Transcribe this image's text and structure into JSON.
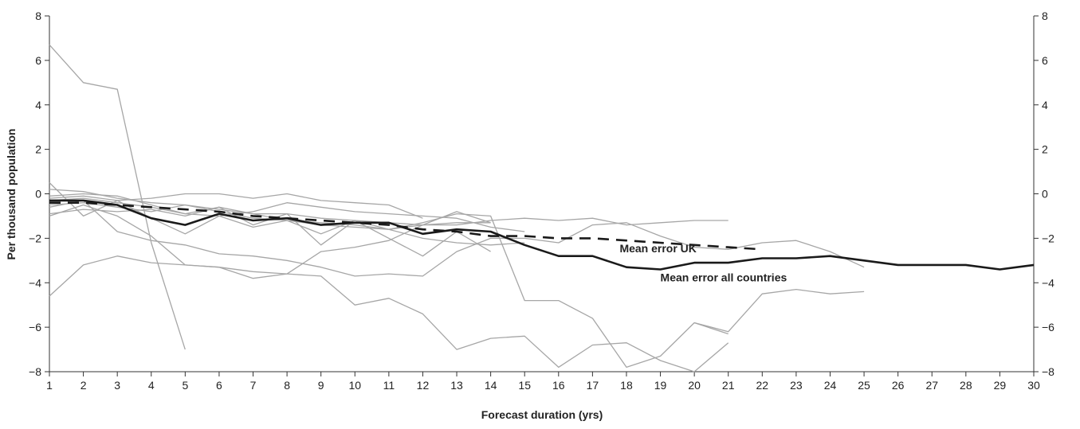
{
  "chart_data": {
    "type": "line",
    "xlabel": "Forecast duration (yrs)",
    "ylabel": "Per thousand population",
    "xlim": [
      1,
      30
    ],
    "ylim": [
      -8,
      8
    ],
    "x_ticks": [
      1,
      2,
      3,
      4,
      5,
      6,
      7,
      8,
      9,
      10,
      11,
      12,
      13,
      14,
      15,
      16,
      17,
      18,
      19,
      20,
      21,
      22,
      23,
      24,
      25,
      26,
      27,
      28,
      29,
      30
    ],
    "y_ticks": [
      -8,
      -6,
      -4,
      -2,
      0,
      2,
      4,
      6,
      8
    ],
    "right_axis": true,
    "grid": false,
    "colors": {
      "country_lines": "#a6a6a6",
      "mean_all": "#1a1a1a",
      "mean_uk": "#1a1a1a",
      "axis": "#333333"
    },
    "annotations": [
      {
        "text": "Mean error UK",
        "x": 17.8,
        "y": -2.45
      },
      {
        "text": "Mean error all countries",
        "x": 19.0,
        "y": -3.75
      }
    ],
    "series": [
      {
        "name": "Mean error all countries",
        "style": "mean_all",
        "x": [
          1,
          2,
          3,
          4,
          5,
          6,
          7,
          8,
          9,
          10,
          11,
          12,
          13,
          14,
          15,
          16,
          17,
          18,
          19,
          20,
          21,
          22,
          23,
          24,
          25,
          26,
          27,
          28,
          29,
          30
        ],
        "y": [
          -0.3,
          -0.3,
          -0.5,
          -1.1,
          -1.4,
          -0.9,
          -1.2,
          -1.1,
          -1.4,
          -1.3,
          -1.3,
          -1.8,
          -1.6,
          -1.7,
          -2.3,
          -2.8,
          -2.8,
          -3.3,
          -3.4,
          -3.1,
          -3.1,
          -2.9,
          -2.9,
          -2.8,
          -3.0,
          -3.2,
          -3.2,
          -3.2,
          -3.4,
          -3.2
        ]
      },
      {
        "name": "Mean error UK",
        "style": "mean_uk",
        "x": [
          1,
          2,
          3,
          4,
          5,
          6,
          7,
          8,
          9,
          10,
          11,
          12,
          13,
          14,
          15,
          16,
          17,
          18,
          19,
          20,
          21,
          22
        ],
        "y": [
          -0.4,
          -0.4,
          -0.5,
          -0.6,
          -0.7,
          -0.8,
          -1.0,
          -1.1,
          -1.2,
          -1.3,
          -1.4,
          -1.6,
          -1.7,
          -1.9,
          -1.9,
          -2.0,
          -2.0,
          -2.1,
          -2.2,
          -2.3,
          -2.4,
          -2.5
        ]
      },
      {
        "style": "country",
        "x": [
          1,
          2,
          3,
          4,
          5
        ],
        "y": [
          6.7,
          5.0,
          4.7,
          -2.2,
          -7.0
        ]
      },
      {
        "style": "country",
        "x": [
          1,
          2,
          3,
          4,
          5,
          6,
          7,
          8,
          9,
          10,
          11,
          12,
          13,
          14,
          15,
          16,
          17,
          18,
          19,
          20,
          21
        ],
        "y": [
          0.5,
          -1.0,
          -0.3,
          -1.1,
          -1.8,
          -1.0,
          -1.5,
          -1.2,
          -1.8,
          -1.2,
          -1.6,
          -1.3,
          -0.9,
          -1.0,
          -4.8,
          -4.8,
          -5.6,
          -7.8,
          -7.3,
          -5.8,
          -6.3
        ]
      },
      {
        "style": "country",
        "x": [
          1,
          2,
          3,
          4,
          5,
          6,
          7,
          8,
          9,
          10,
          11,
          12,
          13,
          14,
          15,
          16,
          17,
          18,
          19,
          20,
          21
        ],
        "y": [
          -4.6,
          -3.2,
          -2.8,
          -3.1,
          -3.2,
          -3.3,
          -3.5,
          -3.6,
          -3.7,
          -5.0,
          -4.7,
          -5.4,
          -7.0,
          -6.5,
          -6.4,
          -7.8,
          -6.8,
          -6.7,
          -7.5,
          -8.0,
          -6.7
        ]
      },
      {
        "style": "country",
        "x": [
          1,
          2,
          3,
          4,
          5,
          6,
          7,
          8,
          9,
          10,
          11,
          12,
          13,
          14,
          15,
          16,
          17,
          18,
          19,
          20,
          21,
          22,
          23,
          24,
          25
        ],
        "y": [
          -0.6,
          -0.3,
          -1.7,
          -2.1,
          -2.3,
          -2.7,
          -2.8,
          -3.0,
          -3.3,
          -3.7,
          -3.6,
          -3.7,
          -2.6,
          -2.0,
          -2.0,
          -2.2,
          -1.4,
          -1.3,
          -1.9,
          -2.4,
          -2.5,
          -2.2,
          -2.1,
          -2.6,
          -3.3
        ]
      },
      {
        "style": "country",
        "x": [
          1,
          2,
          3,
          4,
          5,
          6,
          7,
          8,
          9,
          10,
          11,
          12,
          13,
          14
        ],
        "y": [
          -0.1,
          0.0,
          -0.1,
          -0.5,
          -0.9,
          -0.6,
          -0.9,
          -0.9,
          -1.1,
          -1.2,
          -1.3,
          -1.4,
          -1.3,
          -1.3
        ]
      },
      {
        "style": "country",
        "x": [
          1,
          2,
          3,
          4,
          5,
          6,
          7,
          8,
          9,
          10,
          11,
          12,
          13,
          14,
          15,
          16,
          17,
          18,
          19,
          20,
          21
        ],
        "y": [
          -0.5,
          -0.4,
          -0.6,
          -0.8,
          -0.5,
          -0.8,
          -1.1,
          -1.2,
          -1.3,
          -1.4,
          -1.6,
          -1.4,
          -1.4,
          -1.2,
          -1.1,
          -1.2,
          -1.1,
          -1.4,
          -1.3,
          -1.2,
          -1.2
        ]
      },
      {
        "style": "country",
        "x": [
          1,
          2,
          3,
          4,
          5,
          6,
          7,
          8,
          9,
          10,
          11,
          12,
          13,
          14,
          15
        ],
        "y": [
          0.2,
          0.1,
          -0.2,
          -0.4,
          -0.5,
          -0.7,
          -0.9,
          -1.2,
          -1.4,
          -1.5,
          -1.6,
          -2.0,
          -2.2,
          -2.3,
          -2.2
        ]
      },
      {
        "style": "country",
        "x": [
          1,
          2,
          3,
          4,
          5,
          6,
          7,
          8,
          9,
          10,
          11,
          12
        ],
        "y": [
          -0.2,
          -0.1,
          -0.3,
          -0.2,
          0.0,
          0.0,
          -0.2,
          0.0,
          -0.3,
          -0.4,
          -0.5,
          -1.1
        ]
      },
      {
        "style": "country",
        "x": [
          1,
          2,
          3,
          4,
          5,
          6,
          7,
          8,
          9,
          10,
          11,
          12,
          13,
          14,
          15
        ],
        "y": [
          -0.3,
          -0.2,
          -0.4,
          -0.6,
          -0.9,
          -1.0,
          -0.8,
          -0.4,
          -0.6,
          -0.8,
          -0.9,
          -1.0,
          -1.1,
          -1.5,
          -1.7
        ]
      },
      {
        "style": "country",
        "x": [
          1,
          2,
          3,
          4,
          5,
          6,
          7,
          8,
          9,
          10,
          11,
          12,
          13,
          14
        ],
        "y": [
          -0.9,
          -0.7,
          -0.8,
          -0.7,
          -1.0,
          -0.6,
          -1.4,
          -0.9,
          -2.3,
          -1.2,
          -2.0,
          -2.8,
          -1.7,
          -2.6
        ]
      },
      {
        "style": "country",
        "x": [
          1,
          2,
          3,
          4,
          5,
          6,
          7,
          8,
          9,
          10,
          11,
          12,
          13,
          14
        ],
        "y": [
          -1.0,
          -0.5,
          -1.0,
          -1.9,
          -3.2,
          -3.3,
          -3.8,
          -3.6,
          -2.6,
          -2.4,
          -2.1,
          -1.4,
          -0.8,
          -1.3
        ]
      },
      {
        "style": "country",
        "x": [
          20,
          21,
          22,
          23,
          24,
          25
        ],
        "y": [
          -5.8,
          -6.2,
          -4.5,
          -4.3,
          -4.5,
          -4.4
        ]
      }
    ]
  }
}
